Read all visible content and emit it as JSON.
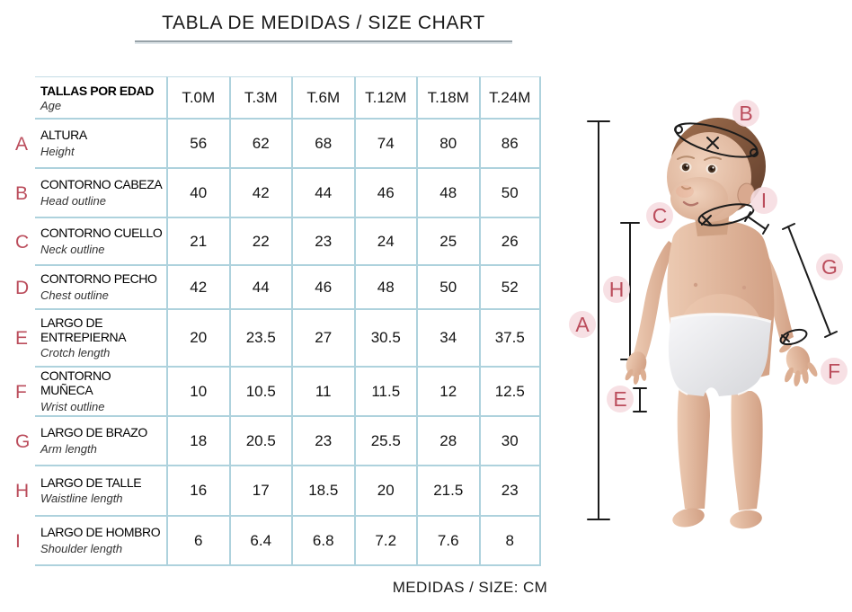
{
  "title": "TABLA DE MEDIDAS / SIZE CHART",
  "footer": "MEDIDAS / SIZE: CM",
  "chart_data": {
    "type": "table",
    "title": "TABLA DE MEDIDAS / SIZE CHART",
    "units_note": "MEDIDAS / SIZE: CM",
    "header": {
      "label": "TALLAS POR EDAD",
      "sublabel": "Age"
    },
    "columns": [
      "T.0M",
      "T.3M",
      "T.6M",
      "T.12M",
      "T.18M",
      "T.24M"
    ],
    "rows": [
      {
        "letter": "A",
        "label": "ALTURA",
        "sublabel": "Height",
        "values": [
          56,
          62,
          68,
          74,
          80,
          86
        ]
      },
      {
        "letter": "B",
        "label": "CONTORNO CABEZA",
        "sublabel": "Head outline",
        "values": [
          40,
          42,
          44,
          46,
          48,
          50
        ]
      },
      {
        "letter": "C",
        "label": "CONTORNO CUELLO",
        "sublabel": "Neck outline",
        "values": [
          21,
          22,
          23,
          24,
          25,
          26
        ]
      },
      {
        "letter": "D",
        "label": "CONTORNO PECHO",
        "sublabel": "Chest outline",
        "values": [
          42,
          44,
          46,
          48,
          50,
          52
        ]
      },
      {
        "letter": "E",
        "label": "LARGO DE ENTREPIERNA",
        "sublabel": "Crotch length",
        "values": [
          20,
          23.5,
          27,
          30.5,
          34,
          37.5
        ]
      },
      {
        "letter": "F",
        "label": "CONTORNO MUÑECA",
        "sublabel": "Wrist outline",
        "values": [
          10,
          10.5,
          11,
          11.5,
          12,
          12.5
        ]
      },
      {
        "letter": "G",
        "label": "LARGO DE BRAZO",
        "sublabel": "Arm length",
        "values": [
          18,
          20.5,
          23,
          25.5,
          28,
          30
        ]
      },
      {
        "letter": "H",
        "label": "LARGO DE TALLE",
        "sublabel": "Waistline length",
        "values": [
          16,
          17,
          18.5,
          20,
          21.5,
          23
        ]
      },
      {
        "letter": "I",
        "label": "LARGO DE HOMBRO",
        "sublabel": "Shoulder length",
        "values": [
          6,
          6.4,
          6.8,
          7.2,
          7.6,
          8
        ]
      }
    ]
  },
  "figure": {
    "labels": [
      "A",
      "B",
      "C",
      "E",
      "F",
      "G",
      "H",
      "I"
    ]
  },
  "colors": {
    "letter_red": "#bb4d5c",
    "table_border": "#aed2dd",
    "measure_line": "#1b1b1b",
    "label_halo": "#f6dde1",
    "skin": "#e0b49b",
    "hair": "#6f4833",
    "diaper": "#e9eaec",
    "text": "#141414"
  }
}
